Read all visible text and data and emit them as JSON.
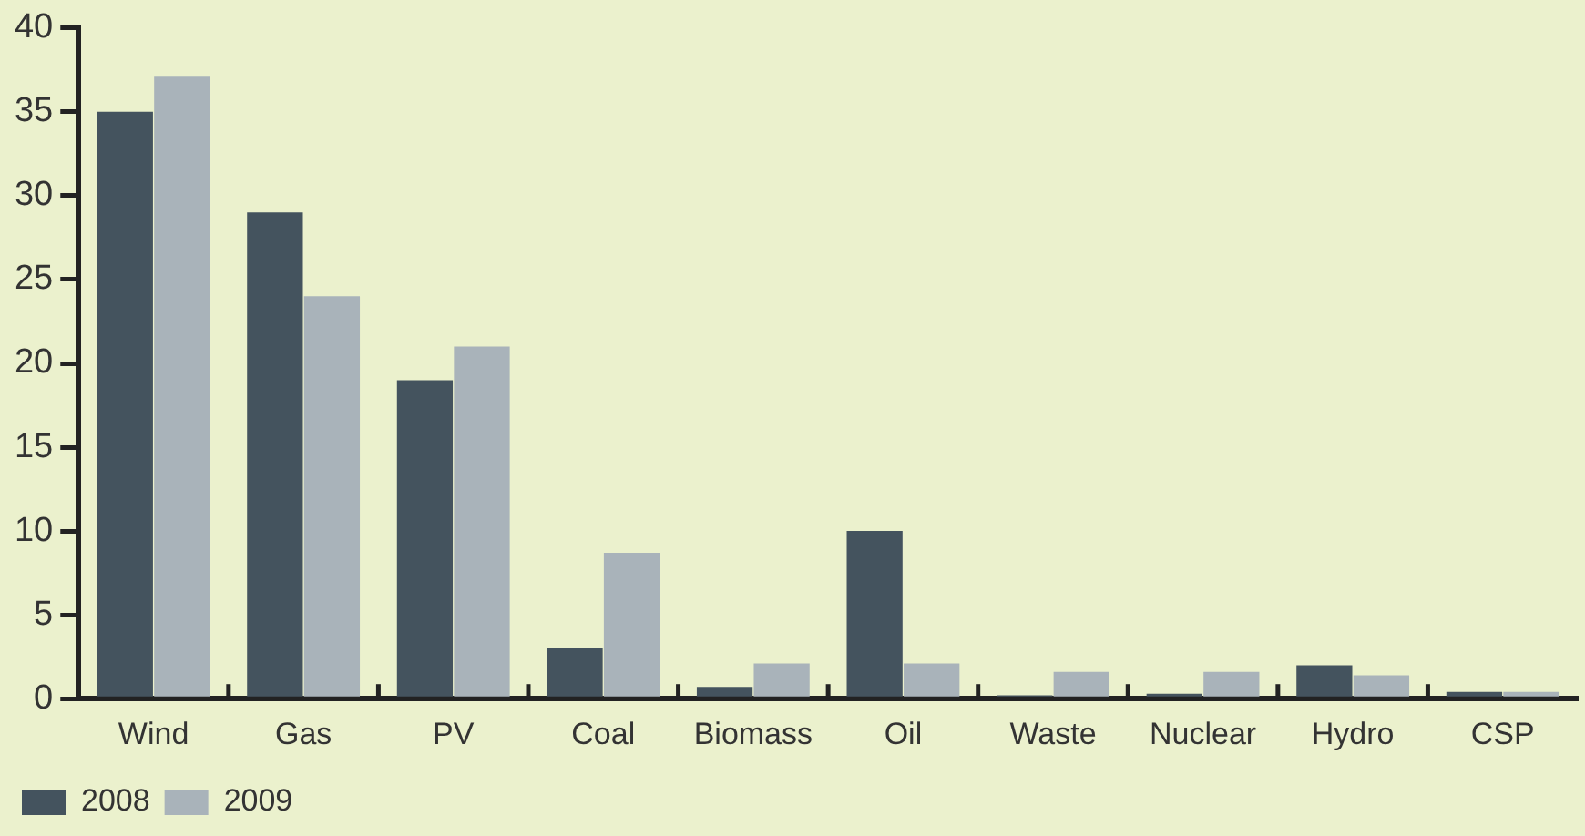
{
  "chart_data": {
    "type": "bar",
    "categories": [
      "Wind",
      "Gas",
      "PV",
      "Coal",
      "Biomass",
      "Oil",
      "Waste",
      "Nuclear",
      "Hydro",
      "CSP"
    ],
    "series": [
      {
        "name": "2008",
        "color": "#44535e",
        "values": [
          35,
          29,
          19,
          3,
          0.7,
          10,
          0.2,
          0.3,
          2,
          0.4
        ]
      },
      {
        "name": "2009",
        "color": "#a9b3ba",
        "values": [
          37.1,
          24,
          21,
          8.7,
          2.1,
          2.1,
          1.6,
          1.6,
          1.4,
          0.4
        ]
      }
    ],
    "ylim": [
      0,
      40
    ],
    "yticks": [
      0,
      5,
      10,
      15,
      20,
      25,
      30,
      35,
      40
    ],
    "grid": false,
    "legend": "bottom left"
  }
}
